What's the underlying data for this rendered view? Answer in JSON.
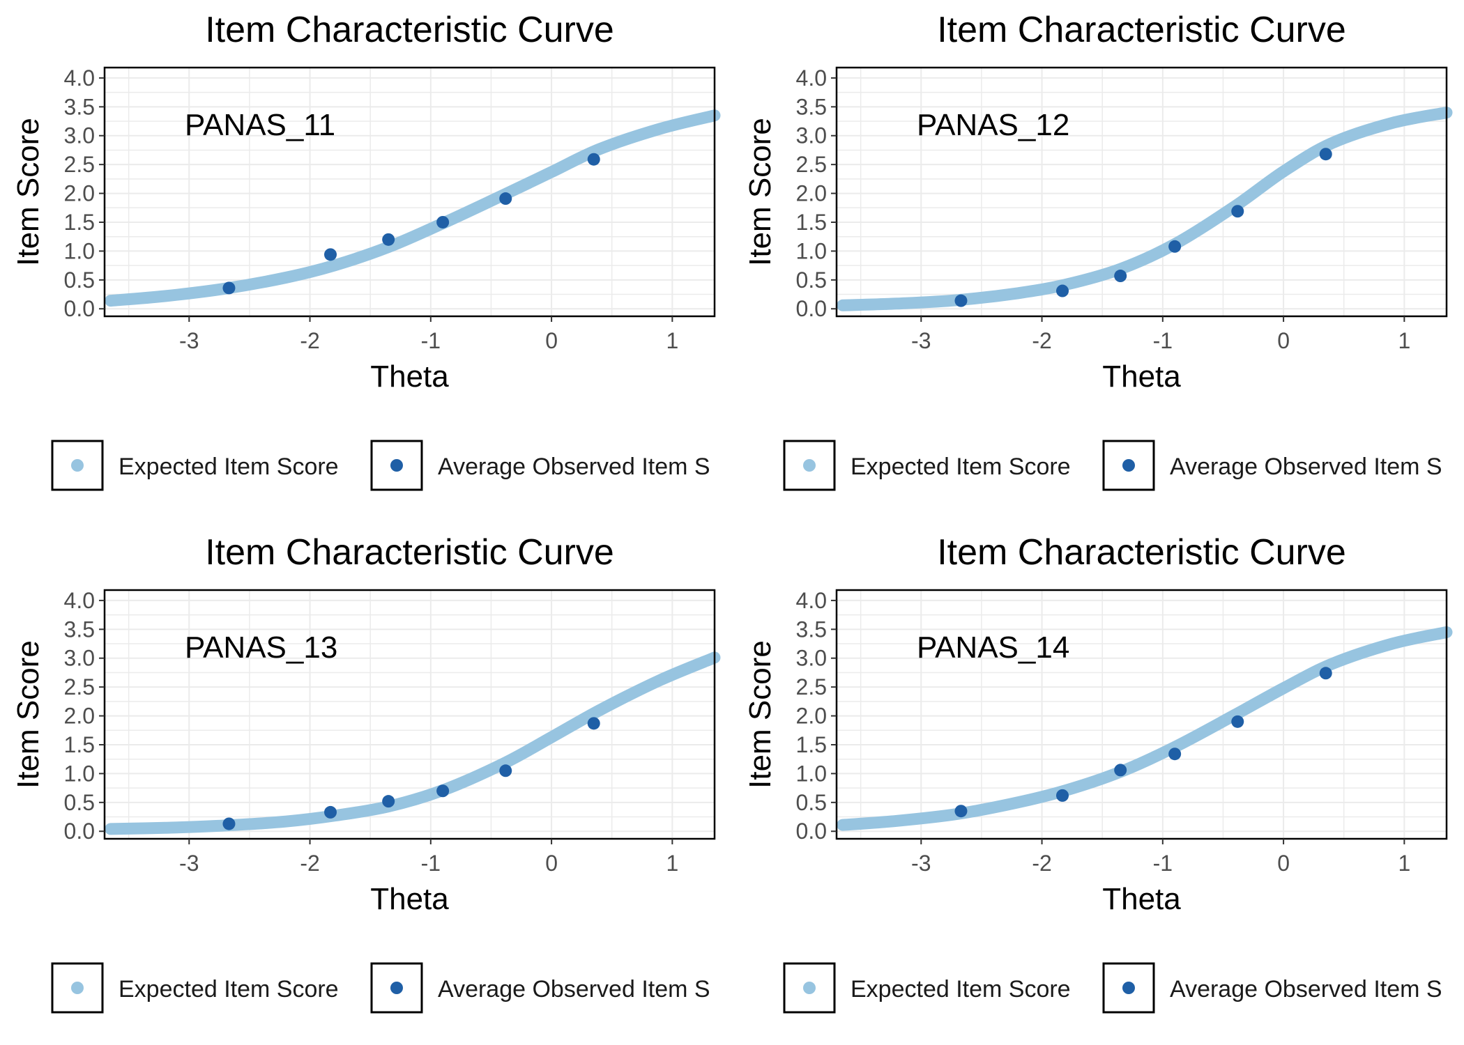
{
  "colors": {
    "expected": "#97c4e0",
    "observed": "#1f5fa6",
    "grid": "#ebebeb",
    "panel_border": "#000000"
  },
  "legend": {
    "expected_label": "Expected Item Score",
    "observed_label": "Average Observed Item S"
  },
  "chart_data": [
    {
      "type": "line",
      "title": "Item Characteristic Curve",
      "xlabel": "Theta",
      "ylabel": "Item Score",
      "item_label": "PANAS_11",
      "xlim": [
        -3.7,
        1.35
      ],
      "ylim": [
        0,
        4
      ],
      "xticks": [
        -3,
        -2,
        -1,
        0,
        1
      ],
      "xtick_labels": [
        "-3",
        "-2",
        "-1",
        "0",
        "1"
      ],
      "yticks": [
        0,
        0.5,
        1,
        1.5,
        2,
        2.5,
        3,
        3.5,
        4
      ],
      "ytick_labels": [
        "0.0",
        "0.5",
        "1.0",
        "1.5",
        "2.0",
        "2.5",
        "3.0",
        "3.5",
        "4.0"
      ],
      "grid": true,
      "legend_position": "bottom",
      "expected_curve": {
        "x": [
          -3.65,
          -3.2,
          -2.7,
          -2.2,
          -1.8,
          -1.35,
          -0.9,
          -0.4,
          0,
          0.4,
          0.9,
          1.35
        ],
        "y": [
          0.14,
          0.22,
          0.35,
          0.54,
          0.75,
          1.07,
          1.48,
          1.97,
          2.37,
          2.77,
          3.12,
          3.35
        ]
      },
      "observed_points": {
        "x": [
          -2.67,
          -1.83,
          -1.35,
          -0.9,
          -0.38,
          0.35
        ],
        "y": [
          0.36,
          0.94,
          1.2,
          1.5,
          1.91,
          2.59
        ]
      }
    },
    {
      "type": "line",
      "title": "Item Characteristic Curve",
      "xlabel": "Theta",
      "ylabel": "Item Score",
      "item_label": "PANAS_12",
      "xlim": [
        -3.7,
        1.35
      ],
      "ylim": [
        0,
        4
      ],
      "xticks": [
        -3,
        -2,
        -1,
        0,
        1
      ],
      "xtick_labels": [
        "-3",
        "-2",
        "-1",
        "0",
        "1"
      ],
      "yticks": [
        0,
        0.5,
        1,
        1.5,
        2,
        2.5,
        3,
        3.5,
        4
      ],
      "ytick_labels": [
        "0.0",
        "0.5",
        "1.0",
        "1.5",
        "2.0",
        "2.5",
        "3.0",
        "3.5",
        "4.0"
      ],
      "grid": true,
      "legend_position": "bottom",
      "expected_curve": {
        "x": [
          -3.65,
          -3.2,
          -2.7,
          -2.2,
          -1.8,
          -1.35,
          -0.9,
          -0.4,
          0,
          0.4,
          0.9,
          1.35
        ],
        "y": [
          0.06,
          0.09,
          0.15,
          0.27,
          0.42,
          0.69,
          1.12,
          1.78,
          2.38,
          2.87,
          3.22,
          3.4
        ]
      },
      "observed_points": {
        "x": [
          -2.67,
          -1.83,
          -1.35,
          -0.9,
          -0.38,
          0.35
        ],
        "y": [
          0.14,
          0.31,
          0.57,
          1.08,
          1.69,
          2.68
        ]
      }
    },
    {
      "type": "line",
      "title": "Item Characteristic Curve",
      "xlabel": "Theta",
      "ylabel": "Item Score",
      "item_label": "PANAS_13",
      "xlim": [
        -3.7,
        1.35
      ],
      "ylim": [
        0,
        4
      ],
      "xticks": [
        -3,
        -2,
        -1,
        0,
        1
      ],
      "xtick_labels": [
        "-3",
        "-2",
        "-1",
        "0",
        "1"
      ],
      "yticks": [
        0,
        0.5,
        1,
        1.5,
        2,
        2.5,
        3,
        3.5,
        4
      ],
      "ytick_labels": [
        "0.0",
        "0.5",
        "1.0",
        "1.5",
        "2.0",
        "2.5",
        "3.0",
        "3.5",
        "4.0"
      ],
      "grid": true,
      "legend_position": "bottom",
      "expected_curve": {
        "x": [
          -3.65,
          -3.2,
          -2.7,
          -2.2,
          -1.8,
          -1.35,
          -0.9,
          -0.4,
          0,
          0.4,
          0.9,
          1.35
        ],
        "y": [
          0.04,
          0.06,
          0.1,
          0.17,
          0.27,
          0.43,
          0.71,
          1.17,
          1.63,
          2.1,
          2.62,
          3.01
        ]
      },
      "observed_points": {
        "x": [
          -2.67,
          -1.83,
          -1.35,
          -0.9,
          -0.38,
          0.35
        ],
        "y": [
          0.13,
          0.33,
          0.52,
          0.7,
          1.05,
          1.87
        ]
      }
    },
    {
      "type": "line",
      "title": "Item Characteristic Curve",
      "xlabel": "Theta",
      "ylabel": "Item Score",
      "item_label": "PANAS_14",
      "xlim": [
        -3.7,
        1.35
      ],
      "ylim": [
        0,
        4
      ],
      "xticks": [
        -3,
        -2,
        -1,
        0,
        1
      ],
      "xtick_labels": [
        "-3",
        "-2",
        "-1",
        "0",
        "1"
      ],
      "yticks": [
        0,
        0.5,
        1,
        1.5,
        2,
        2.5,
        3,
        3.5,
        4
      ],
      "ytick_labels": [
        "0.0",
        "0.5",
        "1.0",
        "1.5",
        "2.0",
        "2.5",
        "3.0",
        "3.5",
        "4.0"
      ],
      "grid": true,
      "legend_position": "bottom",
      "expected_curve": {
        "x": [
          -3.65,
          -3.2,
          -2.7,
          -2.2,
          -1.8,
          -1.35,
          -0.9,
          -0.4,
          0,
          0.4,
          0.9,
          1.35
        ],
        "y": [
          0.11,
          0.18,
          0.3,
          0.5,
          0.71,
          1.03,
          1.46,
          2.02,
          2.48,
          2.9,
          3.25,
          3.45
        ]
      },
      "observed_points": {
        "x": [
          -2.67,
          -1.83,
          -1.35,
          -0.9,
          -0.38,
          0.35
        ],
        "y": [
          0.35,
          0.62,
          1.06,
          1.34,
          1.9,
          2.74
        ]
      }
    }
  ]
}
